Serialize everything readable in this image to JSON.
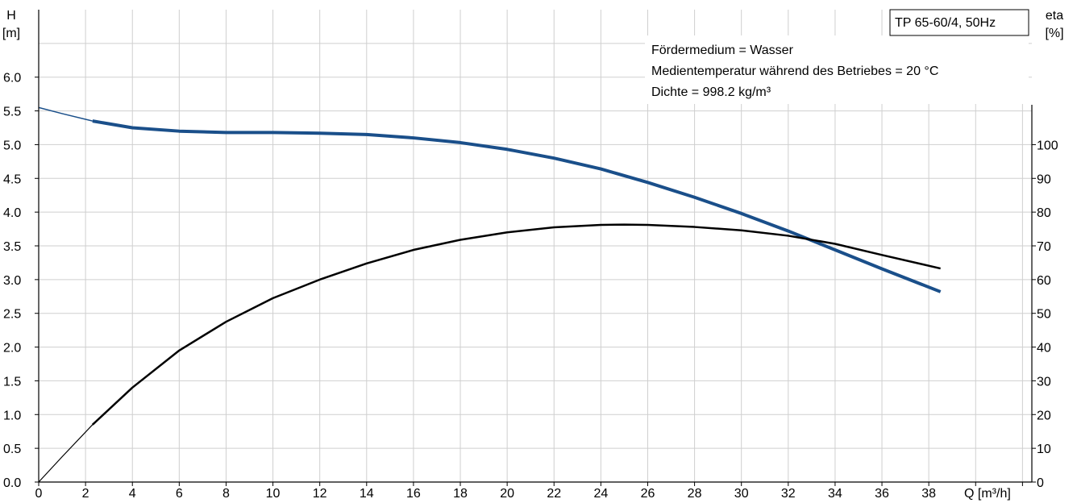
{
  "chart_data": {
    "type": "line",
    "title": "TP 65-60/4, 50Hz",
    "annotations": [
      "Fördermedium = Wasser",
      "Medientemperatur während des Betriebes = 20 °C",
      "Dichte = 998.2 kg/m³"
    ],
    "x_axis": {
      "label": "Q [m³/h]",
      "range": [
        0,
        42.4
      ],
      "ticks": [
        "0",
        "2",
        "4",
        "6",
        "8",
        "10",
        "12",
        "14",
        "16",
        "18",
        "20",
        "22",
        "24",
        "26",
        "28",
        "30",
        "32",
        "34",
        "36",
        "38"
      ]
    },
    "y_left": {
      "label_top": "H",
      "label_unit": "[m]",
      "range": [
        0,
        7
      ],
      "ticks": [
        "0.0",
        "0.5",
        "1.0",
        "1.5",
        "2.0",
        "2.5",
        "3.0",
        "3.5",
        "4.0",
        "4.5",
        "5.0",
        "5.5",
        "6.0"
      ]
    },
    "y_right": {
      "label_top": "eta",
      "label_unit": "[%]",
      "range": [
        0,
        140
      ],
      "ticks": [
        "0",
        "10",
        "20",
        "30",
        "40",
        "50",
        "60",
        "70",
        "80",
        "90",
        "100"
      ]
    },
    "grid": true,
    "colors": {
      "head": "#1a4f8a",
      "efficiency": "#000000",
      "grid": "#cfcfcf"
    },
    "series": [
      {
        "axis": "left",
        "x": [
          0,
          1,
          2.3,
          4,
          6,
          8,
          10,
          12,
          14,
          16,
          18,
          20,
          22,
          24,
          26,
          28,
          30,
          32,
          34,
          36,
          38.5
        ],
        "y": [
          5.55,
          5.46,
          5.35,
          5.25,
          5.2,
          5.18,
          5.18,
          5.17,
          5.15,
          5.1,
          5.03,
          4.93,
          4.8,
          4.64,
          4.44,
          4.22,
          3.98,
          3.72,
          3.44,
          3.16,
          2.82
        ]
      },
      {
        "axis": "right",
        "x": [
          0,
          1,
          2.3,
          4,
          6,
          8,
          10,
          12,
          14,
          16,
          18,
          20,
          22,
          24,
          25,
          26,
          28,
          30,
          32,
          34,
          36,
          38.5
        ],
        "y": [
          0,
          7.5,
          17,
          28,
          39,
          47.5,
          54.5,
          60,
          64.8,
          68.8,
          71.8,
          74,
          75.5,
          76.2,
          76.3,
          76.2,
          75.6,
          74.6,
          73,
          70.6,
          67.3,
          63.3
        ]
      }
    ]
  }
}
